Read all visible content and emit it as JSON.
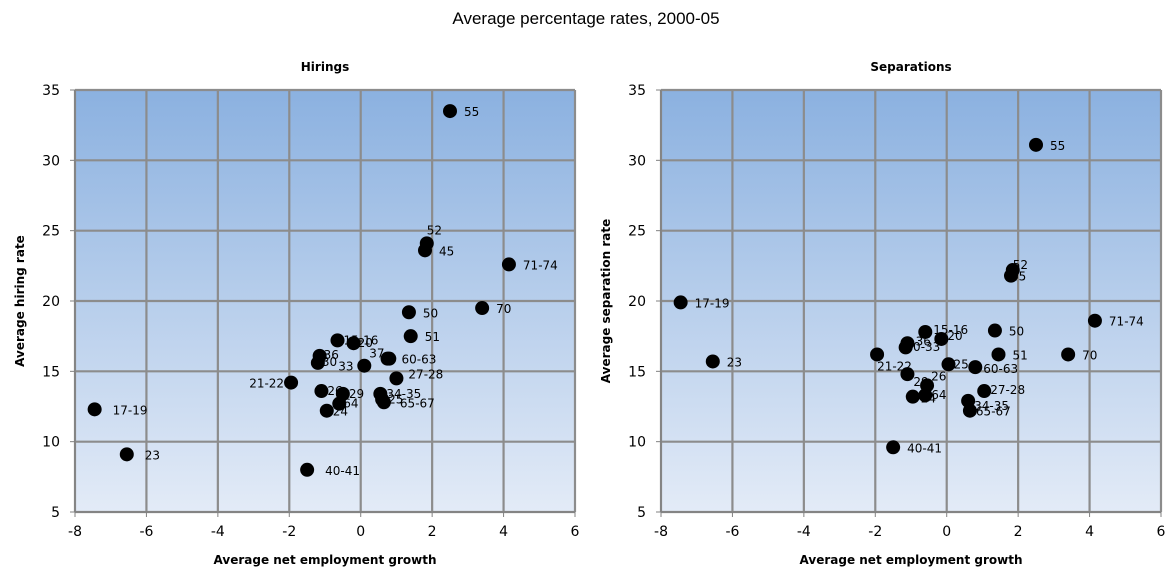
{
  "figure_title": "Average percentage rates, 2000-05",
  "chart_data": [
    {
      "type": "scatter",
      "title": "Hirings",
      "xlabel": "Average net employment growth",
      "ylabel": "Average hiring rate",
      "xlim": [
        -8,
        6
      ],
      "ylim": [
        5,
        35
      ],
      "xticks": [
        -8,
        -6,
        -4,
        -2,
        0,
        2,
        4,
        6
      ],
      "yticks": [
        5,
        10,
        15,
        20,
        25,
        30,
        35
      ],
      "grid": true,
      "points": [
        {
          "label": "17-19",
          "x": -7.45,
          "y": 12.3
        },
        {
          "label": "23",
          "x": -6.55,
          "y": 9.1
        },
        {
          "label": "21-22",
          "x": -1.95,
          "y": 14.2
        },
        {
          "label": "40-41",
          "x": -1.5,
          "y": 8.0
        },
        {
          "label": "36",
          "x": -1.15,
          "y": 16.1
        },
        {
          "label": "30",
          "x": -1.2,
          "y": 15.6
        },
        {
          "label": "26",
          "x": -1.1,
          "y": 13.6
        },
        {
          "label": "24",
          "x": -0.95,
          "y": 12.2
        },
        {
          "label": "15-16",
          "x": -0.65,
          "y": 17.2
        },
        {
          "label": "20",
          "x": -0.2,
          "y": 17.0
        },
        {
          "label": "64",
          "x": -0.6,
          "y": 12.7
        },
        {
          "label": "29",
          "x": -0.5,
          "y": 13.4
        },
        {
          "label": "33",
          "x": 0.1,
          "y": 15.4
        },
        {
          "label": "37",
          "x": 0.8,
          "y": 15.9
        },
        {
          "label": "25",
          "x": 0.6,
          "y": 13.0
        },
        {
          "label": "34-35",
          "x": 0.55,
          "y": 13.4
        },
        {
          "label": "65-67",
          "x": 0.65,
          "y": 12.8
        },
        {
          "label": "27-28",
          "x": 1.0,
          "y": 14.5
        },
        {
          "label": "60-63",
          "x": 0.75,
          "y": 15.9
        },
        {
          "label": "51",
          "x": 1.4,
          "y": 17.5
        },
        {
          "label": "50",
          "x": 1.35,
          "y": 19.2
        },
        {
          "label": "52",
          "x": 1.85,
          "y": 24.1
        },
        {
          "label": "45",
          "x": 1.8,
          "y": 23.6
        },
        {
          "label": "55",
          "x": 2.5,
          "y": 33.5
        },
        {
          "label": "70",
          "x": 3.4,
          "y": 19.5
        },
        {
          "label": "71-74",
          "x": 4.15,
          "y": 22.6
        }
      ]
    },
    {
      "type": "scatter",
      "title": "Separations",
      "xlabel": "Average net employment growth",
      "ylabel": "Average separation rate",
      "xlim": [
        -8,
        6
      ],
      "ylim": [
        5,
        35
      ],
      "xticks": [
        -8,
        -6,
        -4,
        -2,
        0,
        2,
        4,
        6
      ],
      "yticks": [
        5,
        10,
        15,
        20,
        25,
        30,
        35
      ],
      "grid": true,
      "points": [
        {
          "label": "17-19",
          "x": -7.45,
          "y": 19.9
        },
        {
          "label": "23",
          "x": -6.55,
          "y": 15.7
        },
        {
          "label": "21-22",
          "x": -1.95,
          "y": 16.2
        },
        {
          "label": "40-41",
          "x": -1.5,
          "y": 9.6
        },
        {
          "label": "30-33",
          "x": -1.1,
          "y": 17.0
        },
        {
          "label": "36",
          "x": -1.15,
          "y": 16.7
        },
        {
          "label": "15-16",
          "x": -0.6,
          "y": 17.8
        },
        {
          "label": "20",
          "x": -0.15,
          "y": 17.3
        },
        {
          "label": "26",
          "x": -0.55,
          "y": 14.0
        },
        {
          "label": "29",
          "x": -1.1,
          "y": 14.8
        },
        {
          "label": "24",
          "x": -0.95,
          "y": 13.2
        },
        {
          "label": "64",
          "x": -0.6,
          "y": 13.3
        },
        {
          "label": "25",
          "x": 0.05,
          "y": 15.5
        },
        {
          "label": "60-63",
          "x": 0.8,
          "y": 15.3
        },
        {
          "label": "27-28",
          "x": 1.05,
          "y": 13.6
        },
        {
          "label": "34-35",
          "x": 0.6,
          "y": 12.9
        },
        {
          "label": "65-67",
          "x": 0.65,
          "y": 12.2
        },
        {
          "label": "50",
          "x": 1.35,
          "y": 17.9
        },
        {
          "label": "51",
          "x": 1.45,
          "y": 16.2
        },
        {
          "label": "52",
          "x": 1.85,
          "y": 22.2
        },
        {
          "label": "45",
          "x": 1.8,
          "y": 21.8
        },
        {
          "label": "55",
          "x": 2.5,
          "y": 31.1
        },
        {
          "label": "70",
          "x": 3.4,
          "y": 16.2
        },
        {
          "label": "71-74",
          "x": 4.15,
          "y": 18.6
        }
      ]
    }
  ]
}
